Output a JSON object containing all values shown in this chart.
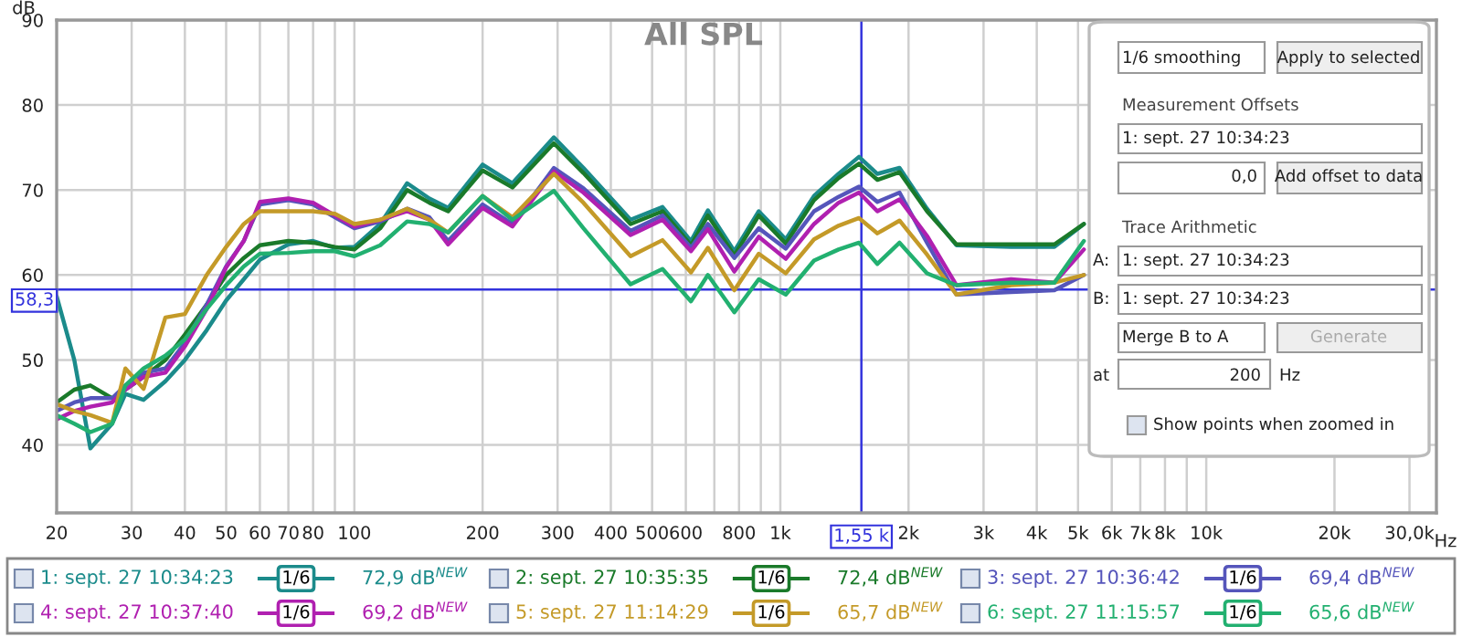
{
  "chart_data": {
    "type": "line",
    "title": "All SPL",
    "xlabel": "Hz",
    "ylabel": "dB",
    "x": [
      20,
      22,
      24,
      27,
      29,
      32,
      36,
      40,
      45,
      50,
      55,
      60,
      70,
      80,
      90,
      100,
      115,
      133,
      150,
      166,
      200,
      235,
      294,
      345,
      445,
      529,
      617,
      676,
      780,
      890,
      1030,
      1200,
      1370,
      1530,
      1690,
      1905,
      2210,
      2590,
      3480,
      4400,
      5160
    ],
    "series": [
      {
        "name": "1: sept. 27 10:34:23",
        "color": "#1b8b8b",
        "values": [
          57.5,
          50,
          39.6,
          42.5,
          46,
          45.3,
          47.5,
          50,
          53.5,
          57,
          59.5,
          61.8,
          63.6,
          64,
          63.2,
          63.3,
          66,
          70.8,
          69,
          67.9,
          73,
          70.8,
          76.2,
          72.6,
          66.5,
          68,
          64,
          67.6,
          62.8,
          67.5,
          64.2,
          69.3,
          71.9,
          73.9,
          71.9,
          72.6,
          67.8,
          63.5,
          63.3,
          63.3,
          66
        ]
      },
      {
        "name": "2: sept. 27 10:35:35",
        "color": "#1a7a2a",
        "values": [
          45,
          46.5,
          47,
          45.5,
          46.5,
          48,
          50,
          53,
          56.5,
          60,
          62,
          63.5,
          64,
          63.8,
          63.3,
          63,
          65.5,
          70,
          68.5,
          67.5,
          72.3,
          70.3,
          75.5,
          72,
          66,
          67.5,
          63.5,
          67,
          62.3,
          67,
          63.7,
          68.8,
          71.4,
          73.1,
          71.2,
          72.1,
          67.5,
          63.6,
          63.6,
          63.6,
          66
        ]
      },
      {
        "name": "3: sept. 27 10:36:42",
        "color": "#5555bb",
        "values": [
          44,
          45,
          45.5,
          45.5,
          47,
          48.5,
          49,
          52,
          56.5,
          61,
          64,
          68.3,
          68.8,
          68.3,
          66.8,
          65.5,
          66.3,
          67.8,
          66.8,
          64,
          68.3,
          66,
          72.6,
          70.2,
          65.2,
          67,
          63.2,
          66,
          62,
          65.5,
          63.1,
          67.5,
          69.2,
          70.4,
          68.6,
          69.7,
          63.8,
          57.7,
          58,
          58.2,
          60
        ]
      },
      {
        "name": "4: sept. 27 10:37:40",
        "color": "#b020b0",
        "values": [
          43,
          44,
          44.5,
          45,
          46.5,
          48,
          48.5,
          51.6,
          56,
          60.9,
          64,
          68.6,
          69,
          68.5,
          67,
          65.7,
          66.5,
          67.5,
          66.5,
          63.6,
          67.9,
          65.7,
          72.2,
          69.7,
          64.7,
          66.5,
          62.8,
          65.4,
          60.4,
          64.5,
          61.9,
          66,
          68.5,
          69.7,
          67.5,
          68.9,
          64.6,
          58.8,
          59.5,
          59.1,
          63
        ]
      },
      {
        "name": "5: sept. 27 11:14:29",
        "color": "#c49a28",
        "values": [
          44.8,
          44,
          43.5,
          42.6,
          49,
          46.6,
          55,
          55.4,
          60,
          63.3,
          66,
          67.5,
          67.5,
          67.5,
          67.2,
          66,
          66.5,
          67.8,
          66.5,
          65,
          69.3,
          66.8,
          71.9,
          68.5,
          62.2,
          64.1,
          60.3,
          63.2,
          58.2,
          62.5,
          60.2,
          64.2,
          65.8,
          66.7,
          64.9,
          66.4,
          62.4,
          57.7,
          58.8,
          59.1,
          60
        ]
      },
      {
        "name": "6: sept. 27 11:15:57",
        "color": "#22b070",
        "values": [
          43.5,
          42.5,
          41.5,
          42.5,
          47,
          49,
          50.5,
          52.4,
          56,
          58.8,
          61,
          62.5,
          62.6,
          62.8,
          62.8,
          62.2,
          63.5,
          66.3,
          66,
          65,
          69.3,
          66.5,
          69.9,
          65.5,
          58.9,
          60.7,
          56.9,
          60,
          55.6,
          59.5,
          57.7,
          61.7,
          63,
          63.8,
          61.3,
          63.8,
          60.2,
          58.8,
          59.1,
          59.1,
          64
        ]
      }
    ],
    "log": "x",
    "xlim": [
      20,
      34700
    ],
    "ylim": [
      32,
      90
    ],
    "xticks": [
      20,
      30,
      40,
      50,
      60,
      70,
      80,
      {
        "value": 90,
        "label": null
      },
      100,
      200,
      300,
      400,
      500,
      600,
      {
        "value": 700,
        "label": null
      },
      800,
      {
        "value": 900,
        "label": null
      },
      {
        "value": 1000,
        "label": "1k"
      },
      {
        "value": 2000,
        "label": "2k"
      },
      {
        "value": 3000,
        "label": "3k"
      },
      {
        "value": 4000,
        "label": "4k"
      },
      {
        "value": 5000,
        "label": "5k"
      },
      {
        "value": 6000,
        "label": "6k"
      },
      {
        "value": 7000,
        "label": "7k"
      },
      {
        "value": 8000,
        "label": "8k"
      },
      {
        "value": 9000,
        "label": null
      },
      {
        "value": 10000,
        "label": "10k"
      },
      {
        "value": 20000,
        "label": "20k"
      },
      {
        "value": 30000,
        "label": "30,0k"
      }
    ],
    "yticks": [
      40,
      50,
      60,
      70,
      80,
      90
    ],
    "grid": true,
    "legend": "bottom",
    "ref_lines": [
      {
        "axis": "y",
        "value": 58.3,
        "label": "58,3",
        "color": "#3333dd"
      },
      {
        "axis": "x",
        "value": 1550,
        "label": "1,55 k",
        "color": "#3333dd"
      }
    ],
    "annotations": [
      "72,9 dB$^{NEW}$",
      "72,4 dB$^{NEW}$",
      "69,4 dB$^{NEW}$",
      "69,2 dB$^{NEW}$",
      "65,7 dB$^{NEW}$",
      "65,6 dB$^{NEW}$",
      "1/6",
      "1/6 smoothing",
      "Apply to selected",
      "Measurement Offsets",
      "1: sept. 27 10:34:23",
      "0,0",
      "Add offset to data",
      "Trace Arithmetic",
      "A:",
      "1: sept. 27 10:34:23",
      "B:",
      "1: sept. 27 10:34:23",
      "Merge B to A",
      "Generate",
      "at",
      "200",
      "Hz",
      "Show points when zoomed in"
    ]
  }
}
